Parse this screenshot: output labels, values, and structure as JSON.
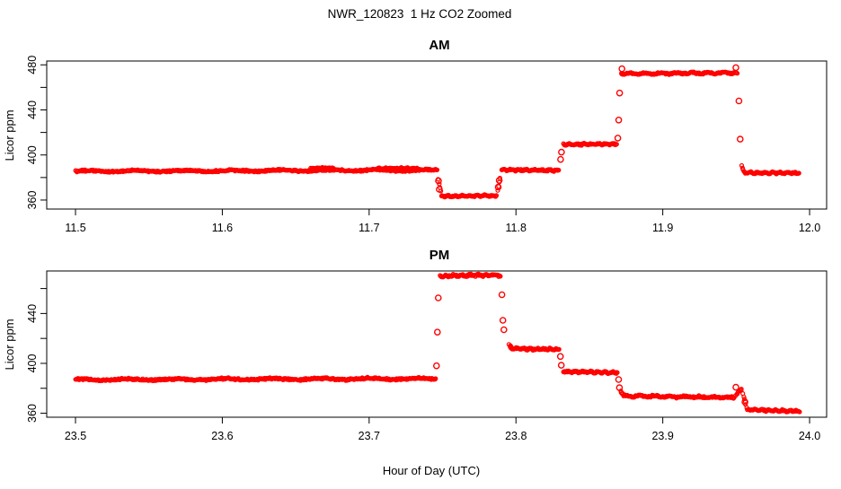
{
  "chart_data": {
    "type": "scatter",
    "title": "NWR_120823  1 Hz CO2 Zoomed",
    "xlabel": "Hour of Day (UTC)",
    "ylabel": "Licor ppm",
    "marker": "open-circle",
    "point_color": "#FF0000",
    "axis_color": "#000000",
    "background": "#FFFFFF",
    "grid": false,
    "legend": false,
    "panels": [
      {
        "id": "am",
        "title": "AM",
        "xlim": [
          11.4804,
          12.0116
        ],
        "ylim": [
          352.0,
          483.4
        ],
        "xticks": [
          11.5,
          11.6,
          11.7,
          11.8,
          11.9,
          12.0
        ],
        "xtick_labels": [
          "11.5",
          "11.6",
          "11.7",
          "11.8",
          "11.9",
          "12.0"
        ],
        "ytick_values": [
          360,
          400,
          440,
          480
        ],
        "ytick_labels": [
          "360",
          "400",
          "440",
          "480"
        ],
        "ytick_minor": [
          380,
          420,
          460
        ],
        "segments": [
          [
            11.5,
            11.7465,
            385.6,
            386.6,
            1.4
          ],
          [
            11.66,
            11.676,
            388.0,
            388.4,
            1.0
          ],
          [
            11.705,
            11.733,
            387.9,
            388.2,
            1.1
          ],
          [
            11.7468,
            11.7488,
            380.0,
            366.0,
            0.7
          ],
          [
            11.749,
            11.787,
            363.4,
            363.9,
            1.2
          ],
          [
            11.7875,
            11.7893,
            367.0,
            381.0,
            0.6
          ],
          [
            11.79,
            11.8295,
            386.8,
            386.4,
            1.3
          ],
          [
            11.832,
            11.869,
            409.2,
            409.8,
            1.2
          ],
          [
            11.8715,
            11.951,
            472.2,
            472.9,
            1.4
          ],
          [
            11.9535,
            11.955,
            391.0,
            386.0,
            0.8
          ],
          [
            11.955,
            11.993,
            384.3,
            384.0,
            1.3
          ]
        ],
        "transition_points": [
          [
            11.7472,
            377.0
          ],
          [
            11.7478,
            369.5
          ],
          [
            11.7879,
            371.5
          ],
          [
            11.7886,
            377.5
          ],
          [
            11.8304,
            396.0
          ],
          [
            11.831,
            402.5
          ],
          [
            11.8694,
            415.0
          ],
          [
            11.87,
            431.0
          ],
          [
            11.8706,
            455.0
          ],
          [
            11.8722,
            476.5
          ],
          [
            11.9498,
            477.5
          ],
          [
            11.9519,
            448.0
          ],
          [
            11.9527,
            414.0
          ]
        ]
      },
      {
        "id": "pm",
        "title": "PM",
        "xlim": [
          23.4804,
          24.0116
        ],
        "ylim": [
          356.8,
          474.1
        ],
        "xticks": [
          23.5,
          23.6,
          23.7,
          23.8,
          23.9,
          24.0
        ],
        "xtick_labels": [
          "23.5",
          "23.6",
          "23.7",
          "23.8",
          "23.9",
          "24.0"
        ],
        "ytick_values": [
          360,
          400,
          440
        ],
        "ytick_labels": [
          "360",
          "400",
          "440"
        ],
        "ytick_minor": [
          380,
          420,
          460
        ],
        "segments": [
          [
            23.5,
            23.7455,
            386.9,
            387.7,
            1.4
          ],
          [
            23.748,
            23.7895,
            470.2,
            470.9,
            1.5
          ],
          [
            23.795,
            23.7972,
            415.0,
            412.5,
            1.6
          ],
          [
            23.796,
            23.8295,
            411.8,
            411.2,
            1.3
          ],
          [
            23.832,
            23.8695,
            393.4,
            392.6,
            1.2
          ],
          [
            23.871,
            23.873,
            378.5,
            375.0,
            1.2
          ],
          [
            23.873,
            23.949,
            373.8,
            372.7,
            1.3
          ],
          [
            23.9495,
            23.954,
            374.5,
            379.8,
            1.0
          ],
          [
            23.9545,
            23.9572,
            377.0,
            363.5,
            0.8
          ],
          [
            23.9575,
            23.9935,
            362.9,
            361.6,
            1.2
          ]
        ],
        "transition_points": [
          [
            23.7459,
            398.0
          ],
          [
            23.7465,
            425.0
          ],
          [
            23.7471,
            452.5
          ],
          [
            23.7904,
            455.0
          ],
          [
            23.7911,
            434.5
          ],
          [
            23.7918,
            427.0
          ],
          [
            23.8303,
            405.5
          ],
          [
            23.8309,
            398.5
          ],
          [
            23.8699,
            387.0
          ],
          [
            23.8705,
            380.5
          ],
          [
            23.9498,
            380.8
          ],
          [
            23.956,
            369.0
          ]
        ]
      }
    ]
  }
}
